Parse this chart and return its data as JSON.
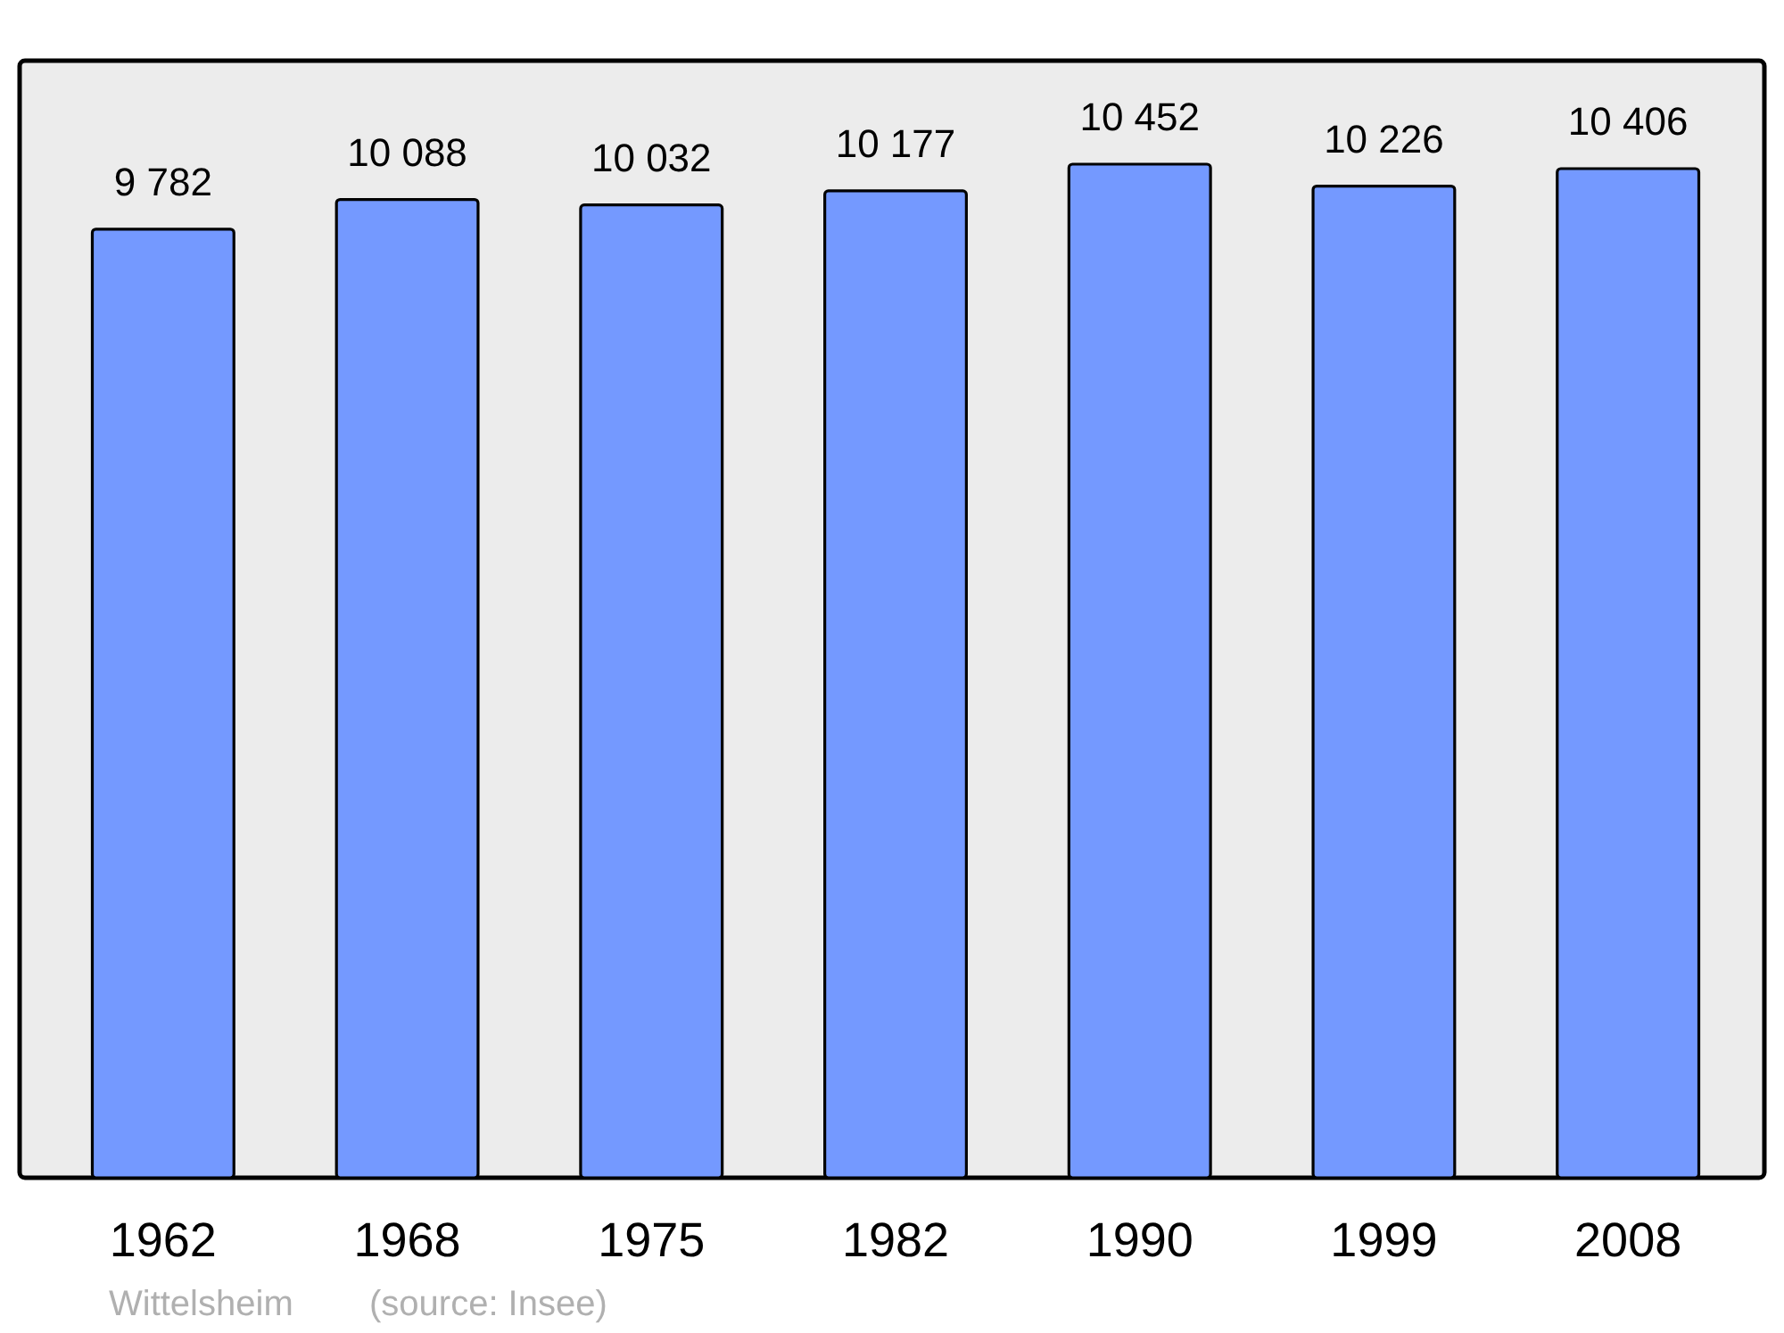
{
  "chart_data": {
    "type": "bar",
    "categories": [
      "1962",
      "1968",
      "1975",
      "1982",
      "1990",
      "1999",
      "2008"
    ],
    "values": [
      9782,
      10088,
      10032,
      10177,
      10452,
      10226,
      10406
    ],
    "value_labels": [
      "9 782",
      "10 088",
      "10 032",
      "10 177",
      "10 452",
      "10 226",
      "10 406"
    ],
    "color": "#7499ff",
    "annotations": [
      "Wittelsheim",
      "(source: Insee)"
    ]
  }
}
